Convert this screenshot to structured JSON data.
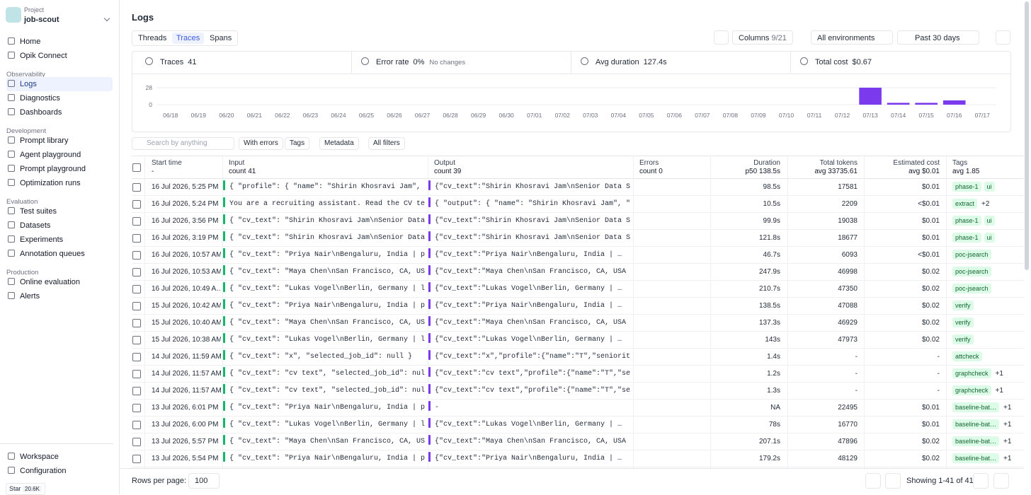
{
  "sidebar": {
    "project_label": "Project",
    "project_name": "job-scout",
    "top": [
      "Home",
      "Opik Connect"
    ],
    "sections": [
      {
        "title": "Observability",
        "items": [
          "Logs",
          "Diagnostics",
          "Dashboards"
        ]
      },
      {
        "title": "Development",
        "items": [
          "Prompt library",
          "Agent playground",
          "Prompt playground",
          "Optimization runs"
        ]
      },
      {
        "title": "Evaluation",
        "items": [
          "Test suites",
          "Datasets",
          "Experiments",
          "Annotation queues"
        ]
      },
      {
        "title": "Production",
        "items": [
          "Online evaluation",
          "Alerts"
        ]
      }
    ],
    "bottom": [
      "Workspace",
      "Configuration"
    ],
    "star": "Star",
    "star_count": "20.6K"
  },
  "header": {
    "title": "Logs",
    "tabs": [
      "Threads",
      "Traces",
      "Spans"
    ],
    "columns_label": "Columns",
    "columns_count": "9/21",
    "environment": "All environments",
    "date_range": "Past 30 days"
  },
  "stats": [
    {
      "label": "Traces",
      "value": "41"
    },
    {
      "label": "Error rate",
      "value": "0%",
      "note": "No changes"
    },
    {
      "label": "Avg duration",
      "value": "127.4s"
    },
    {
      "label": "Total cost",
      "value": "$0.67"
    }
  ],
  "chart_data": {
    "type": "bar",
    "color": "#7c3aed",
    "categories": [
      "06/18",
      "06/19",
      "06/20",
      "06/21",
      "06/22",
      "06/23",
      "06/24",
      "06/25",
      "06/26",
      "06/27",
      "06/28",
      "06/29",
      "06/30",
      "07/01",
      "07/02",
      "07/03",
      "07/04",
      "07/05",
      "07/06",
      "07/07",
      "07/08",
      "07/09",
      "07/10",
      "07/11",
      "07/12",
      "07/13",
      "07/14",
      "07/15",
      "07/16",
      "07/17"
    ],
    "values": [
      0,
      0,
      0,
      0,
      0,
      0,
      0,
      0,
      0,
      0,
      0,
      0,
      0,
      0,
      0,
      0,
      0,
      0,
      0,
      0,
      0,
      0,
      0,
      0,
      0,
      28,
      3,
      3,
      7,
      0
    ],
    "ylim": [
      0,
      28
    ],
    "yticks": [
      0,
      28
    ],
    "grid": true
  },
  "filters": {
    "search_placeholder": "Search by anything",
    "buttons": [
      "With errors",
      "Tags",
      "Metadata",
      "All filters"
    ]
  },
  "table": {
    "columns": [
      {
        "title": "Start time",
        "sub": "-"
      },
      {
        "title": "Input",
        "sub": "count 41"
      },
      {
        "title": "Output",
        "sub": "count 39"
      },
      {
        "title": "Errors",
        "sub": "count 0"
      },
      {
        "title": "Duration",
        "sub": "p50 138.5s"
      },
      {
        "title": "Total tokens",
        "sub": "avg 33735.61"
      },
      {
        "title": "Estimated cost",
        "sub": "avg $0.01"
      },
      {
        "title": "Tags",
        "sub": "avg 1.85"
      }
    ],
    "rows": [
      {
        "start": "16 Jul 2026, 5:25 PM",
        "input": "{ \"profile\": { \"name\": \"Shirin Khosravi Jam\", \"seni…",
        "output": "{\"cv_text\":\"Shirin Khosravi Jam\\nSenior Data Scient…",
        "duration": "98.5s",
        "tokens": "17581",
        "cost": "$0.01",
        "tags": [
          "phase-1",
          "ui"
        ]
      },
      {
        "start": "16 Jul 2026, 5:24 PM",
        "input": "You are a recruiting assistant. Read the CV text be…",
        "output": "{ \"output\": { \"name\": \"Shirin Khosravi Jam\", \"senior…",
        "duration": "10.5s",
        "tokens": "2209",
        "cost": "<$0.01",
        "tags": [
          "extract"
        ],
        "more": "+2"
      },
      {
        "start": "16 Jul 2026, 3:56 PM",
        "input": "{ \"cv_text\": \"Shirin Khosravi Jam\\nSenior Data Scie…",
        "output": "{\"cv_text\":\"Shirin Khosravi Jam\\nSenior Data Scient…",
        "duration": "99.9s",
        "tokens": "19038",
        "cost": "$0.01",
        "tags": [
          "phase-1",
          "ui"
        ]
      },
      {
        "start": "16 Jul 2026, 3:19 PM",
        "input": "{ \"cv_text\": \"Shirin Khosravi Jam\\nSenior Data Scie…",
        "output": "{\"cv_text\":\"Shirin Khosravi Jam\\nSenior Data Scient…",
        "duration": "121.8s",
        "tokens": "18677",
        "cost": "$0.01",
        "tags": [
          "phase-1",
          "ui"
        ]
      },
      {
        "start": "16 Jul 2026, 10:57 AM",
        "input": "{ \"cv_text\": \"Priya Nair\\nBengaluru, India | priya…",
        "output": "{\"cv_text\":\"Priya Nair\\nBengaluru, India | …",
        "duration": "46.7s",
        "tokens": "6093",
        "cost": "<$0.01",
        "tags": [
          "poc-jsearch"
        ]
      },
      {
        "start": "16 Jul 2026, 10:53 AM",
        "input": "{ \"cv_text\": \"Maya Chen\\nSan Francisco, CA, USA | m…",
        "output": "{\"cv_text\":\"Maya Chen\\nSan Francisco, CA, USA | …",
        "duration": "247.9s",
        "tokens": "46998",
        "cost": "$0.02",
        "tags": [
          "poc-jsearch"
        ]
      },
      {
        "start": "16 Jul 2026, 10:49 A…",
        "input": "{ \"cv_text\": \"Lukas Vogel\\nBerlin, Germany | lukas…",
        "output": "{\"cv_text\":\"Lukas Vogel\\nBerlin, Germany | …",
        "duration": "210.7s",
        "tokens": "47350",
        "cost": "$0.02",
        "tags": [
          "poc-jsearch"
        ]
      },
      {
        "start": "15 Jul 2026, 10:42 AM",
        "input": "{ \"cv_text\": \"Priya Nair\\nBengaluru, India | priya…",
        "output": "{\"cv_text\":\"Priya Nair\\nBengaluru, India | …",
        "duration": "138.5s",
        "tokens": "47088",
        "cost": "$0.02",
        "tags": [
          "verify"
        ]
      },
      {
        "start": "15 Jul 2026, 10:40 AM",
        "input": "{ \"cv_text\": \"Maya Chen\\nSan Francisco, CA, USA | m…",
        "output": "{\"cv_text\":\"Maya Chen\\nSan Francisco, CA, USA | …",
        "duration": "137.3s",
        "tokens": "46929",
        "cost": "$0.02",
        "tags": [
          "verify"
        ]
      },
      {
        "start": "15 Jul 2026, 10:38 AM",
        "input": "{ \"cv_text\": \"Lukas Vogel\\nBerlin, Germany | lukas…",
        "output": "{\"cv_text\":\"Lukas Vogel\\nBerlin, Germany | …",
        "duration": "143s",
        "tokens": "47973",
        "cost": "$0.02",
        "tags": [
          "verify"
        ]
      },
      {
        "start": "14 Jul 2026, 11:59 AM",
        "input": "{ \"cv_text\": \"x\", \"selected_job_id\": null }",
        "output": "{\"cv_text\":\"x\",\"profile\":{\"name\":\"T\",\"seniority\":\"m…",
        "duration": "1.4s",
        "tokens": "-",
        "cost": "-",
        "tags": [
          "attcheck"
        ]
      },
      {
        "start": "14 Jul 2026, 11:57 AM",
        "input": "{ \"cv_text\": \"cv text\", \"selected_job_id\": null }",
        "output": "{\"cv_text\":\"cv text\",\"profile\":{\"name\":\"T\",\"seniori…",
        "duration": "1.2s",
        "tokens": "-",
        "cost": "-",
        "tags": [
          "graphcheck"
        ],
        "more": "+1"
      },
      {
        "start": "14 Jul 2026, 11:57 AM",
        "input": "{ \"cv_text\": \"cv text\", \"selected_job_id\": null }",
        "output": "{\"cv_text\":\"cv text\",\"profile\":{\"name\":\"T\",\"seniori…",
        "duration": "1.3s",
        "tokens": "-",
        "cost": "-",
        "tags": [
          "graphcheck"
        ],
        "more": "+1"
      },
      {
        "start": "13 Jul 2026, 6:01 PM",
        "input": "{ \"cv_text\": \"Priya Nair\\nBengaluru, India | priya…",
        "output": "-",
        "duration": "NA",
        "tokens": "22495",
        "cost": "$0.01",
        "tags": [
          "baseline-bat…"
        ],
        "more": "+1"
      },
      {
        "start": "13 Jul 2026, 6:00 PM",
        "input": "{ \"cv_text\": \"Lukas Vogel\\nBerlin, Germany | lukas…",
        "output": "{\"cv_text\":\"Lukas Vogel\\nBerlin, Germany | …",
        "duration": "78s",
        "tokens": "16770",
        "cost": "$0.01",
        "tags": [
          "baseline-bat…"
        ],
        "more": "+1"
      },
      {
        "start": "13 Jul 2026, 5:57 PM",
        "input": "{ \"cv_text\": \"Maya Chen\\nSan Francisco, CA, USA | m…",
        "output": "{\"cv_text\":\"Maya Chen\\nSan Francisco, CA, USA | …",
        "duration": "207.1s",
        "tokens": "47896",
        "cost": "$0.02",
        "tags": [
          "baseline-bat…"
        ],
        "more": "+1"
      },
      {
        "start": "13 Jul 2026, 5:54 PM",
        "input": "{ \"cv_text\": \"Priya Nair\\nBengaluru, India | priya…",
        "output": "{\"cv_text\":\"Priya Nair\\nBengaluru, India | …",
        "duration": "179.2s",
        "tokens": "48129",
        "cost": "$0.02",
        "tags": [
          "baseline-bat…"
        ],
        "more": "+1"
      }
    ]
  },
  "footer": {
    "rows_per_page_label": "Rows per page:",
    "rows_per_page": "100",
    "showing": "Showing 1-41 of 41"
  }
}
